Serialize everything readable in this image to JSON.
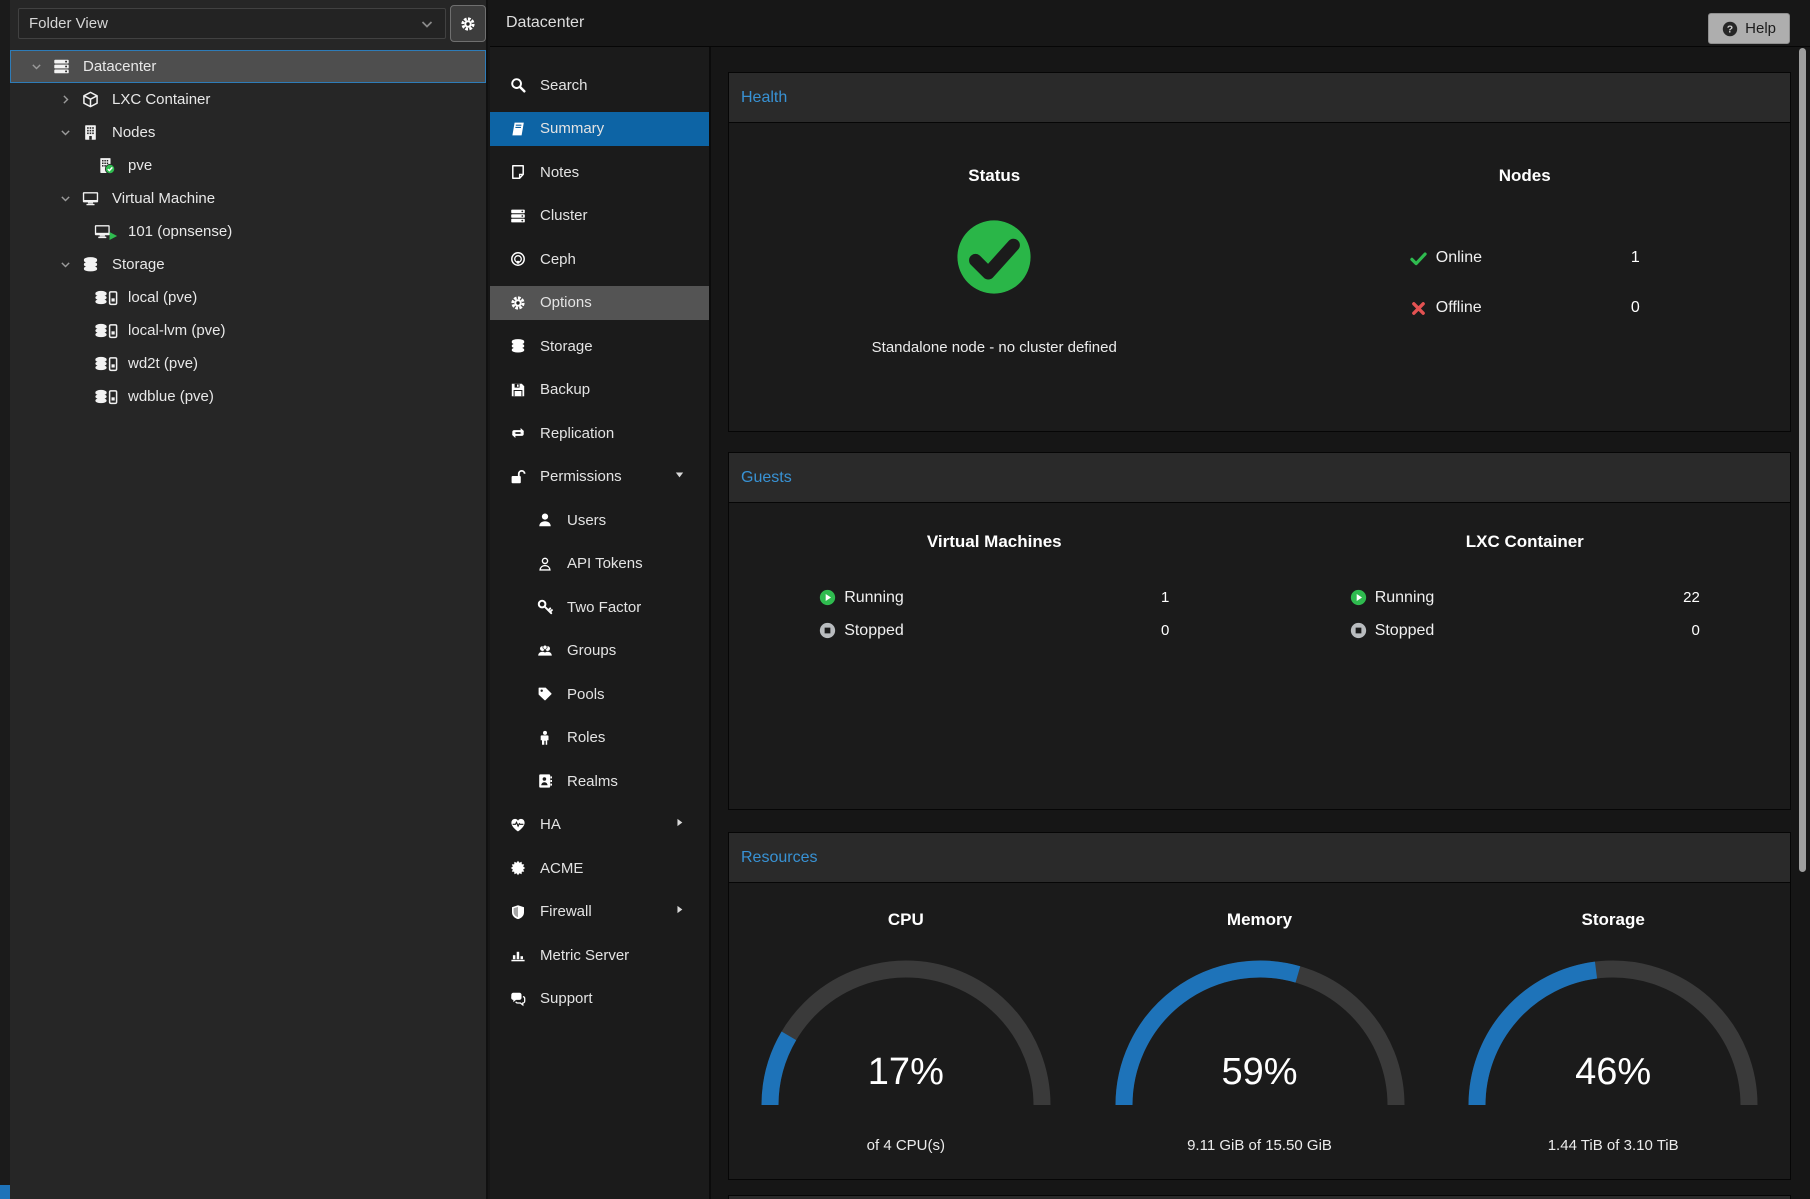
{
  "topbar": {
    "title": "Datacenter",
    "help_label": "Help",
    "help_icon": "question-circle-icon"
  },
  "sidebar": {
    "view_selector": {
      "value": "Folder View",
      "chevron": "chevron-down-icon"
    },
    "gear_button": {
      "icon": "gear-icon"
    },
    "tree": [
      {
        "label": "Datacenter",
        "icon": "server-stack-icon",
        "level": 0,
        "expander": "chevron-down-icon",
        "selected": true
      },
      {
        "label": "LXC Container",
        "icon": "cube-icon",
        "level": 1,
        "expander": "chevron-right-icon"
      },
      {
        "label": "Nodes",
        "icon": "building-icon",
        "level": 1,
        "expander": "chevron-down-icon"
      },
      {
        "label": "pve",
        "icon": "building-check-icon",
        "level": 2
      },
      {
        "label": "Virtual Machine",
        "icon": "monitor-icon",
        "level": 1,
        "expander": "chevron-down-icon"
      },
      {
        "label": "101 (opnsense)",
        "icon": "monitor-play-icon",
        "level": 2
      },
      {
        "label": "Storage",
        "icon": "database-icon",
        "level": 1,
        "expander": "chevron-down-icon"
      },
      {
        "label": "local (pve)",
        "icon": "storage-child-icon",
        "level": 2
      },
      {
        "label": "local-lvm (pve)",
        "icon": "storage-child-icon",
        "level": 2
      },
      {
        "label": "wd2t (pve)",
        "icon": "storage-child-icon",
        "level": 2
      },
      {
        "label": "wdblue (pve)",
        "icon": "storage-child-icon",
        "level": 2
      }
    ]
  },
  "nav": {
    "items": [
      {
        "label": "Search",
        "icon": "magnifier-icon"
      },
      {
        "label": "Summary",
        "icon": "book-icon",
        "selected": true
      },
      {
        "label": "Notes",
        "icon": "note-icon"
      },
      {
        "label": "Cluster",
        "icon": "server-stack-icon"
      },
      {
        "label": "Ceph",
        "icon": "ceph-icon"
      },
      {
        "label": "Options",
        "icon": "gear-icon",
        "hovered": true
      },
      {
        "label": "Storage",
        "icon": "database-icon"
      },
      {
        "label": "Backup",
        "icon": "floppy-icon"
      },
      {
        "label": "Replication",
        "icon": "sync-icon"
      },
      {
        "label": "Permissions",
        "icon": "unlock-icon",
        "arrow": "triangle-down-icon"
      },
      {
        "label": "Users",
        "icon": "user-icon",
        "indent": 1
      },
      {
        "label": "API Tokens",
        "icon": "user-outline-icon",
        "indent": 1
      },
      {
        "label": "Two Factor",
        "icon": "key-icon",
        "indent": 1
      },
      {
        "label": "Groups",
        "icon": "users-icon",
        "indent": 1
      },
      {
        "label": "Pools",
        "icon": "tag-icon",
        "indent": 1
      },
      {
        "label": "Roles",
        "icon": "person-icon",
        "indent": 1
      },
      {
        "label": "Realms",
        "icon": "address-book-icon",
        "indent": 1
      },
      {
        "label": "HA",
        "icon": "heartbeat-icon",
        "arrow": "triangle-right-icon"
      },
      {
        "label": "ACME",
        "icon": "burst-icon"
      },
      {
        "label": "Firewall",
        "icon": "shield-icon",
        "arrow": "triangle-right-icon"
      },
      {
        "label": "Metric Server",
        "icon": "bar-chart-icon"
      },
      {
        "label": "Support",
        "icon": "comments-icon"
      }
    ]
  },
  "health": {
    "title": "Health",
    "status": {
      "heading": "Status",
      "icon": "check-circle-icon",
      "message": "Standalone node - no cluster defined"
    },
    "nodes": {
      "heading": "Nodes",
      "rows": [
        {
          "icon": "check-icon",
          "color": "green",
          "label": "Online",
          "value": "1"
        },
        {
          "icon": "cross-icon",
          "color": "red",
          "label": "Offline",
          "value": "0"
        }
      ]
    }
  },
  "guests": {
    "title": "Guests",
    "columns": [
      {
        "heading": "Virtual Machines",
        "rows": [
          {
            "icon": "play-circle-icon",
            "label": "Running",
            "value": "1"
          },
          {
            "icon": "stop-circle-icon",
            "label": "Stopped",
            "value": "0"
          }
        ]
      },
      {
        "heading": "LXC Container",
        "rows": [
          {
            "icon": "play-circle-icon",
            "label": "Running",
            "value": "22"
          },
          {
            "icon": "stop-circle-icon",
            "label": "Stopped",
            "value": "0"
          }
        ]
      }
    ]
  },
  "resources": {
    "title": "Resources",
    "gauges": [
      {
        "heading": "CPU",
        "percent": 17,
        "display": "17%",
        "sub": "of 4 CPU(s)"
      },
      {
        "heading": "Memory",
        "percent": 59,
        "display": "59%",
        "sub": "9.11 GiB of 15.50 GiB"
      },
      {
        "heading": "Storage",
        "percent": 46,
        "display": "46%",
        "sub": "1.44 TiB of 3.10 TiB"
      }
    ]
  },
  "colors": {
    "accent_blue": "#1e73b9",
    "selection_blue": "#0d64a5",
    "header_link": "#3892d4",
    "green": "#2fbb4f",
    "red": "#e35252",
    "gauge_track": "#3a3a3a",
    "stopped_gray": "#b9bcbf"
  }
}
